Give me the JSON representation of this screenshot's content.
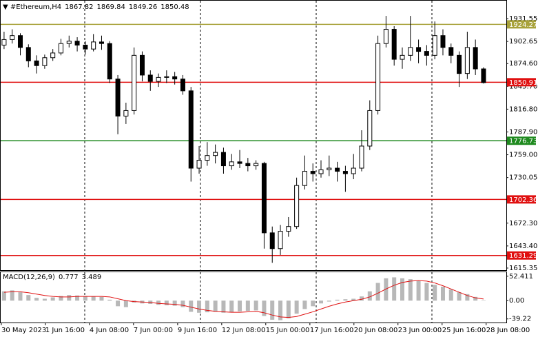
{
  "chart_data": [
    {
      "type": "candlestick",
      "title": "#Ethereum,H4",
      "ohlc": [
        [
          1898,
          1915,
          1893,
          1905
        ],
        [
          1905,
          1918,
          1900,
          1910
        ],
        [
          1910,
          1913,
          1885,
          1895
        ],
        [
          1895,
          1899,
          1870,
          1878
        ],
        [
          1878,
          1885,
          1862,
          1872
        ],
        [
          1872,
          1886,
          1868,
          1882
        ],
        [
          1882,
          1893,
          1878,
          1888
        ],
        [
          1888,
          1906,
          1885,
          1900
        ],
        [
          1900,
          1910,
          1895,
          1903
        ],
        [
          1903,
          1908,
          1890,
          1898
        ],
        [
          1898,
          1903,
          1886,
          1893
        ],
        [
          1893,
          1912,
          1890,
          1902
        ],
        [
          1902,
          1910,
          1892,
          1900
        ],
        [
          1900,
          1903,
          1850,
          1855
        ],
        [
          1855,
          1860,
          1785,
          1808
        ],
        [
          1808,
          1825,
          1798,
          1815
        ],
        [
          1815,
          1895,
          1810,
          1885
        ],
        [
          1885,
          1890,
          1852,
          1860
        ],
        [
          1860,
          1866,
          1840,
          1852
        ],
        [
          1852,
          1862,
          1845,
          1857
        ],
        [
          1857,
          1866,
          1850,
          1858
        ],
        [
          1858,
          1864,
          1848,
          1855
        ],
        [
          1855,
          1860,
          1835,
          1840
        ],
        [
          1840,
          1845,
          1725,
          1742
        ],
        [
          1742,
          1770,
          1735,
          1752
        ],
        [
          1752,
          1775,
          1745,
          1758
        ],
        [
          1758,
          1772,
          1748,
          1762
        ],
        [
          1762,
          1768,
          1735,
          1745
        ],
        [
          1745,
          1760,
          1740,
          1750
        ],
        [
          1750,
          1765,
          1742,
          1748
        ],
        [
          1748,
          1755,
          1738,
          1745
        ],
        [
          1745,
          1752,
          1740,
          1748
        ],
        [
          1748,
          1750,
          1640,
          1660
        ],
        [
          1660,
          1668,
          1622,
          1640
        ],
        [
          1640,
          1670,
          1632,
          1662
        ],
        [
          1662,
          1680,
          1655,
          1668
        ],
        [
          1668,
          1730,
          1665,
          1720
        ],
        [
          1720,
          1758,
          1715,
          1738
        ],
        [
          1738,
          1748,
          1725,
          1735
        ],
        [
          1735,
          1752,
          1730,
          1740
        ],
        [
          1740,
          1758,
          1732,
          1742
        ],
        [
          1742,
          1750,
          1725,
          1738
        ],
        [
          1738,
          1745,
          1712,
          1735
        ],
        [
          1735,
          1760,
          1728,
          1742
        ],
        [
          1742,
          1790,
          1738,
          1770
        ],
        [
          1770,
          1828,
          1765,
          1815
        ],
        [
          1815,
          1910,
          1810,
          1900
        ],
        [
          1900,
          1935,
          1895,
          1918
        ],
        [
          1918,
          1922,
          1872,
          1880
        ],
        [
          1880,
          1895,
          1868,
          1885
        ],
        [
          1885,
          1935,
          1878,
          1895
        ],
        [
          1895,
          1905,
          1875,
          1890
        ],
        [
          1890,
          1898,
          1872,
          1885
        ],
        [
          1885,
          1928,
          1880,
          1910
        ],
        [
          1910,
          1918,
          1885,
          1895
        ],
        [
          1895,
          1900,
          1875,
          1885
        ],
        [
          1885,
          1890,
          1845,
          1862
        ],
        [
          1862,
          1915,
          1855,
          1895
        ],
        [
          1895,
          1905,
          1860,
          1867.82
        ],
        [
          1867.82,
          1869.84,
          1849.26,
          1850.48
        ]
      ],
      "xlim": [
        -0.5,
        61.8
      ],
      "xticks": [
        {
          "value": -0.34,
          "label": "30 May 2023"
        },
        {
          "value": 5.08,
          "label": "1 Jun 16:00"
        },
        {
          "value": 10.51,
          "label": "4 Jun 08:00"
        },
        {
          "value": 15.93,
          "label": "7 Jun 00:00"
        },
        {
          "value": 21.36,
          "label": "9 Jun 16:00"
        },
        {
          "value": 26.78,
          "label": "12 Jun 08:00"
        },
        {
          "value": 32.2,
          "label": "15 Jun 00:00"
        },
        {
          "value": 37.63,
          "label": "17 Jun 16:00"
        },
        {
          "value": 43.05,
          "label": "20 Jun 08:00"
        },
        {
          "value": 48.47,
          "label": "23 Jun 00:00"
        },
        {
          "value": 53.9,
          "label": "25 Jun 16:00"
        },
        {
          "value": 59.32,
          "label": "28 Jun 08:00"
        }
      ],
      "ylim": [
        1612.7,
        1954.3
      ],
      "yticks": [
        1931.55,
        1902.65,
        {
          "value": 1874.6,
          "label": "1874.60"
        },
        {
          "value": 1845.7,
          "label": "1845.70"
        },
        {
          "value": 1816.8,
          "label": "1816.80"
        },
        {
          "value": 1787.9,
          "label": "1787.90"
        },
        {
          "value": 1759,
          "label": "1759.00"
        },
        1730.05,
        {
          "value": 1672.3,
          "label": "1672.30"
        },
        {
          "value": 1643.4,
          "label": "1643.40"
        },
        1615.35
      ],
      "levels": [
        {
          "value": 1924.27,
          "color": "#a8a23a"
        },
        {
          "value": 1850.91,
          "color": "#e01010"
        },
        {
          "value": 1776.73,
          "color": "#1f8a1f"
        },
        {
          "value": 1702.36,
          "color": "#e01010"
        },
        {
          "value": 1631.29,
          "color": "#e01010"
        }
      ]
    },
    {
      "type": "macd",
      "title": "MACD(12,26,9)",
      "histogram": [
        20,
        22,
        18,
        12,
        6,
        4,
        7,
        10,
        12,
        11,
        10,
        9,
        8,
        2,
        -12,
        -14,
        -4,
        -6,
        -7,
        -9,
        -10,
        -11,
        -14,
        -24,
        -26,
        -25,
        -24,
        -26,
        -25,
        -23,
        -22,
        -21,
        -33,
        -41,
        -42,
        -38,
        -28,
        -18,
        -12,
        -6,
        -2,
        2,
        3,
        4,
        9,
        20,
        38,
        48,
        50,
        48,
        46,
        42,
        38,
        34,
        30,
        24,
        18,
        14,
        8,
        0.777
      ],
      "signal": [
        18,
        19,
        19,
        17,
        14,
        11,
        9,
        8,
        8,
        9,
        9,
        9,
        9,
        8,
        4,
        0,
        -2,
        -3,
        -4,
        -6,
        -7,
        -8,
        -10,
        -14,
        -18,
        -21,
        -23,
        -24,
        -25,
        -25,
        -24,
        -23,
        -26,
        -31,
        -35,
        -36,
        -34,
        -29,
        -24,
        -18,
        -12,
        -7,
        -3,
        0,
        3,
        8,
        16,
        25,
        33,
        39,
        42,
        43,
        42,
        38,
        32,
        25,
        18,
        11,
        6,
        3.489
      ],
      "histogram_color": "#b8b8b8",
      "signal_color": "#e01010",
      "ylim": [
        -47,
        61
      ],
      "yticks": [
        52.411,
        {
          "value": 0,
          "label": "0.00"
        },
        -39.22
      ]
    }
  ]
}
